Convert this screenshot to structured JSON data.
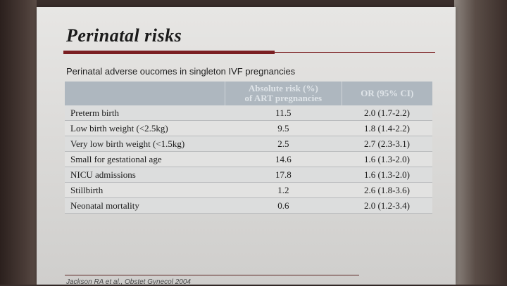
{
  "slide": {
    "title": "Perinatal risks",
    "table_caption": "Perinatal adverse oucomes in singleton IVF pregnancies",
    "citation": "Jackson RA et al., Obstet Gynecol 2004"
  },
  "table": {
    "headers": {
      "outcome": "",
      "risk_line1": "Absolute risk (%)",
      "risk_line2": "of ART pregnancies",
      "or": "OR (95% CI)"
    },
    "rows": [
      {
        "outcome": "Preterm birth",
        "risk": "11.5",
        "or": "2.0 (1.7-2.2)"
      },
      {
        "outcome": "Low birth weight (<2.5kg)",
        "risk": "9.5",
        "or": "1.8 (1.4-2.2)"
      },
      {
        "outcome": "Very low birth weight (<1.5kg)",
        "risk": "2.5",
        "or": "2.7 (2.3-3.1)"
      },
      {
        "outcome": "Small for gestational age",
        "risk": "14.6",
        "or": "1.6 (1.3-2.0)"
      },
      {
        "outcome": "NICU admissions",
        "risk": "17.8",
        "or": "1.6 (1.3-2.0)"
      },
      {
        "outcome": "Stillbirth",
        "risk": "1.2",
        "or": "2.6 (1.8-3.6)"
      },
      {
        "outcome": "Neonatal mortality",
        "risk": "0.6",
        "or": "2.0 (1.2-3.4)"
      }
    ]
  },
  "colors": {
    "accent": "#7a1f22",
    "header_bg": "#aeb7bf"
  }
}
